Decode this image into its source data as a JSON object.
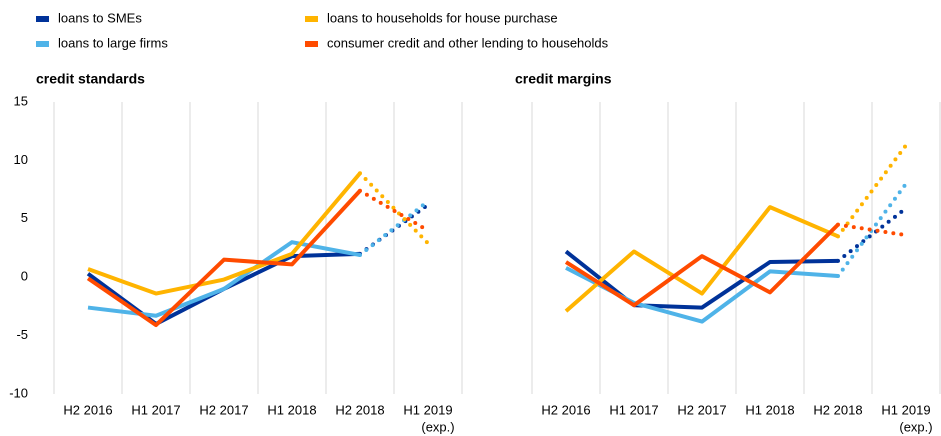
{
  "chart_data": [
    {
      "type": "line",
      "title": "credit standards",
      "categories": [
        "H2 2016",
        "H1 2017",
        "H2 2017",
        "H1 2018",
        "H2 2018",
        "H1 2019"
      ],
      "x_note": "(exp.)",
      "ylim": [
        -10,
        15
      ],
      "yticks": [
        -10,
        -5,
        0,
        5,
        10,
        15
      ],
      "series": [
        {
          "name": "loans to SMEs",
          "color": "#003299",
          "values": [
            0.3,
            -4.0,
            -1.0,
            1.8,
            2.0,
            6.2
          ]
        },
        {
          "name": "loans to large firms",
          "color": "#4fb3e8",
          "values": [
            -2.6,
            -3.3,
            -1.0,
            3.0,
            1.9,
            6.5
          ]
        },
        {
          "name": "loans to households for house purchase",
          "color": "#ffb400",
          "values": [
            0.7,
            -1.4,
            -0.2,
            2.0,
            8.9,
            2.9
          ]
        },
        {
          "name": "consumer credit and other lending to households",
          "color": "#ff4b00",
          "values": [
            -0.1,
            -4.1,
            1.5,
            1.1,
            7.4,
            4.0
          ]
        }
      ]
    },
    {
      "type": "line",
      "title": "credit margins",
      "categories": [
        "H2 2016",
        "H1 2017",
        "H2 2017",
        "H1 2018",
        "H2 2018",
        "H1 2019"
      ],
      "x_note": "(exp.)",
      "ylim": [
        -10,
        15
      ],
      "series": [
        {
          "color": "#003299",
          "values": [
            2.2,
            -2.4,
            -2.6,
            1.3,
            1.4,
            5.9
          ]
        },
        {
          "color": "#4fb3e8",
          "values": [
            0.8,
            -2.2,
            -3.8,
            0.5,
            0.1,
            8.0
          ]
        },
        {
          "color": "#ffb400",
          "values": [
            -2.9,
            2.2,
            -1.4,
            6.0,
            3.5,
            11.3
          ]
        },
        {
          "color": "#ff4b00",
          "values": [
            1.3,
            -2.4,
            1.8,
            -1.3,
            4.5,
            3.6
          ]
        }
      ]
    }
  ]
}
